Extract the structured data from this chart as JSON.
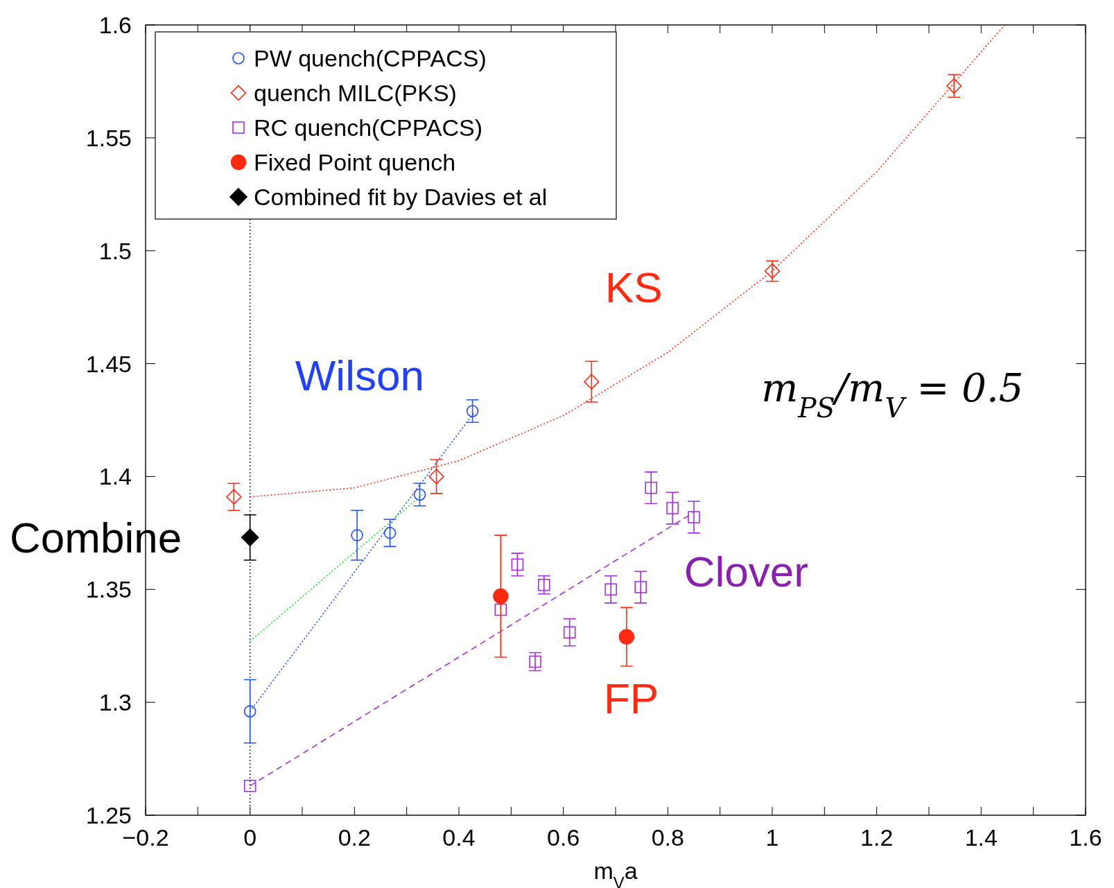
{
  "chart_data": {
    "type": "scatter",
    "xlabel": "m$_{V}$a",
    "xlim": [
      -0.2,
      1.6
    ],
    "ylim": [
      1.25,
      1.6
    ],
    "xticks": [
      {
        "value": -0.2,
        "label": "−0.2"
      },
      {
        "value": -0.1,
        "label": null
      },
      0,
      {
        "value": 0.1,
        "label": null
      },
      0.2,
      {
        "value": 0.3,
        "label": null
      },
      0.4,
      {
        "value": 0.5,
        "label": null
      },
      0.6,
      {
        "value": 0.7,
        "label": null
      },
      0.8,
      {
        "value": 0.9,
        "label": null
      },
      1,
      {
        "value": 1.1,
        "label": null
      },
      1.2,
      {
        "value": 1.3,
        "label": null
      },
      1.4,
      {
        "value": 1.5,
        "label": null
      },
      1.6
    ],
    "yticks": [
      1.25,
      1.3,
      1.35,
      1.4,
      1.45,
      1.5,
      1.55,
      1.6
    ],
    "grid": false,
    "legend": "top left",
    "series": [
      {
        "type": "line",
        "color": "#ff2a10",
        "line_style": "dotted",
        "x": [
          0,
          0.2,
          0.4,
          0.6,
          0.8,
          1.0,
          1.2,
          1.445
        ],
        "values": [
          1.391,
          1.395,
          1.407,
          1.427,
          1.455,
          1.491,
          1.535,
          1.6
        ]
      },
      {
        "type": "line",
        "color": "#2050ff",
        "line_style": "dotted",
        "x": [
          0,
          0.428
        ],
        "values": [
          1.296,
          1.428
        ]
      },
      {
        "type": "line",
        "color": "#10e010",
        "line_style": "dotted",
        "x": [
          0,
          0.33
        ],
        "values": [
          1.327,
          1.392
        ]
      },
      {
        "type": "line",
        "color": "#a030e0",
        "line_style": "dashed",
        "x": [
          0,
          0.849
        ],
        "values": [
          1.263,
          1.384
        ]
      },
      {
        "name": "PW quench(CPPACS)",
        "marker": "circle",
        "color": "#2050ff",
        "x": [
          0,
          0.205,
          0.268,
          0.325,
          0.426
        ],
        "values": [
          1.296,
          1.374,
          1.375,
          1.392,
          1.429
        ],
        "errors": [
          0.014,
          0.011,
          0.006,
          0.005,
          0.005
        ]
      },
      {
        "name": "quench MILC(PKS)",
        "marker": "diamond",
        "color": "#ff2a10",
        "x": [
          -0.031,
          0.357,
          0.654,
          1.0,
          1.348
        ],
        "values": [
          1.391,
          1.4,
          1.442,
          1.491,
          1.573
        ],
        "errors": [
          0.006,
          0.0075,
          0.009,
          0.0045,
          0.005
        ]
      },
      {
        "name": "RC quench(CPPACS)",
        "marker": "square",
        "color": "#a030e0",
        "x": [
          0,
          0.48,
          0.512,
          0.563,
          0.546,
          0.612,
          0.691,
          0.748,
          0.768,
          0.809,
          0.85
        ],
        "values": [
          1.263,
          1.341,
          1.361,
          1.352,
          1.318,
          1.331,
          1.35,
          1.351,
          1.395,
          1.386,
          1.382
        ],
        "errors": [
          null,
          null,
          0.005,
          0.004,
          0.004,
          0.006,
          0.006,
          0.007,
          0.007,
          0.007,
          0.007
        ]
      },
      {
        "name": "Fixed Point quench",
        "marker": "circle",
        "color": "#ff2a10",
        "x": [
          0.48,
          0.721
        ],
        "values": [
          1.347,
          1.329
        ],
        "errors": [
          0.027,
          0.013
        ]
      },
      {
        "name": "Combined fit by Davies et al",
        "marker": "diamond",
        "color": "#000000",
        "x": [
          0
        ],
        "values": [
          1.373
        ],
        "errors": [
          0.01
        ]
      }
    ],
    "ref_lines": [
      {
        "axis": "x",
        "value": 0,
        "label": null,
        "color": "#000000",
        "line_style": "dotted"
      }
    ],
    "annotations": [
      "Wilson",
      "KS",
      "m$_{PS}$/m$_{V}$ = 0.5",
      "Clover",
      "FP",
      "Combine"
    ]
  }
}
